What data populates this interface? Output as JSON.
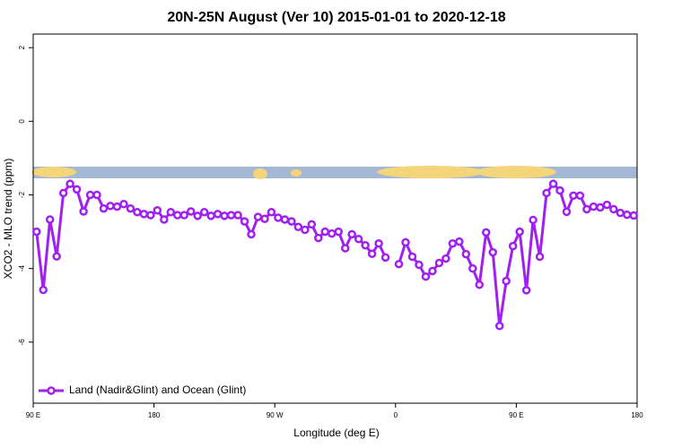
{
  "chart_data": {
    "type": "line",
    "title": "20N-25N August (Ver 10)   2015-01-01 to 2020-12-18",
    "x_label": "Longitude (deg E)",
    "y_label": "XCO2 - MLO trend (ppm)",
    "xlim": [
      90,
      540
    ],
    "ylim": [
      -7.66,
      2.37
    ],
    "xticks": [
      {
        "value": 90,
        "label": "90 E"
      },
      180,
      {
        "value": 270,
        "label": "90 W"
      },
      {
        "value": 360,
        "label": "0"
      },
      {
        "value": 450,
        "label": "90 E"
      },
      {
        "value": 540,
        "label": "180"
      }
    ],
    "yticks": [
      -6,
      -4,
      -2,
      0,
      2
    ],
    "legend": "bottom-left",
    "x": [
      92.5,
      97.5,
      102.5,
      107.5,
      112.5,
      117.5,
      122.5,
      127.5,
      132.5,
      137.5,
      142.5,
      147.5,
      152.5,
      157.5,
      162.5,
      167.5,
      172.5,
      177.5,
      182.5,
      187.5,
      192.5,
      197.5,
      202.5,
      207.5,
      212.5,
      217.5,
      222.5,
      227.5,
      232.5,
      237.5,
      242.5,
      247.5,
      252.5,
      257.5,
      262.5,
      267.5,
      272.5,
      277.5,
      282.5,
      287.5,
      292.5,
      297.5,
      302.5,
      307.5,
      312.5,
      317.5,
      322.5,
      327.5,
      332.5,
      337.5,
      342.5,
      347.5,
      352.5,
      357.5,
      362.5,
      367.5,
      372.5,
      377.5,
      382.5,
      387.5,
      392.5,
      397.5,
      402.5,
      407.5,
      412.5,
      417.5,
      422.5,
      427.5,
      432.5,
      437.5,
      442.5,
      447.5,
      452.5,
      457.5,
      462.5,
      467.5,
      472.5,
      477.5,
      482.5,
      487.5,
      492.5,
      497.5,
      502.5,
      507.5,
      512.5,
      517.5,
      522.5,
      527.5,
      532.5,
      537.5
    ],
    "series": [
      {
        "name": "Land (Nadir&Glint) and Ocean (Glint)",
        "color": "#a020f0",
        "values": [
          -3.0,
          -4.58,
          -2.67,
          -3.67,
          -1.95,
          -1.7,
          -1.85,
          -2.45,
          -2.0,
          -2.0,
          -2.37,
          -2.3,
          -2.32,
          -2.25,
          -2.37,
          -2.47,
          -2.52,
          -2.55,
          -2.42,
          -2.67,
          -2.47,
          -2.55,
          -2.55,
          -2.45,
          -2.57,
          -2.47,
          -2.57,
          -2.52,
          -2.57,
          -2.55,
          -2.55,
          -2.72,
          -3.07,
          -2.6,
          -2.65,
          -2.47,
          -2.62,
          -2.67,
          -2.72,
          -2.87,
          -2.95,
          -2.8,
          -3.17,
          -3.0,
          -3.05,
          -3.0,
          -3.45,
          -3.07,
          -3.2,
          -3.37,
          -3.6,
          -3.32,
          -3.7,
          null,
          -3.88,
          -3.29,
          -3.68,
          -3.9,
          -4.22,
          -4.07,
          -3.85,
          -3.73,
          -3.32,
          -3.27,
          -3.61,
          -4.0,
          -4.44,
          -3.02,
          -3.56,
          -5.56,
          -4.34,
          -3.39,
          -3.0,
          -4.59,
          -2.68,
          -3.68,
          -1.95,
          -1.7,
          -1.88,
          -2.46,
          -2.02,
          -2.02,
          -2.39,
          -2.32,
          -2.34,
          -2.27,
          -2.39,
          -2.49,
          -2.54,
          -2.56
        ]
      }
    ]
  }
}
